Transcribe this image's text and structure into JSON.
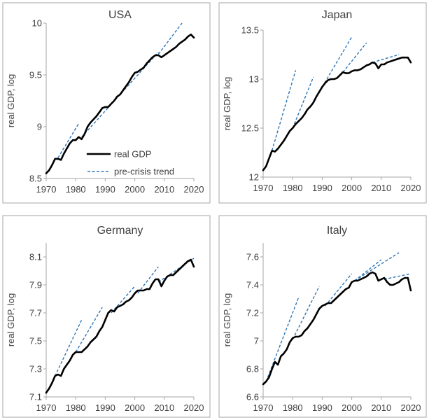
{
  "chart_data": [
    {
      "id": "usa",
      "type": "line",
      "title": "USA",
      "xlabel": "",
      "ylabel": "real GDP, log",
      "xlim": [
        1970,
        2020
      ],
      "ylim": [
        8.5,
        10
      ],
      "xticks": [
        1970,
        1980,
        1990,
        2000,
        2010,
        2020
      ],
      "xtick_labels": [
        "1970",
        "1980",
        "1990",
        "2000",
        "2010",
        "2020"
      ],
      "yticks": [
        8.5,
        9,
        9.5,
        10
      ],
      "ytick_labels": [
        "8.5",
        "9",
        "9.5",
        "10"
      ],
      "legend": {
        "position": "bottom-right",
        "entries": [
          "real GDP",
          "pre-crisis trend"
        ]
      },
      "series": [
        {
          "name": "real GDP",
          "style": "solid-black",
          "x": [
            1970,
            1971,
            1972,
            1973,
            1974,
            1975,
            1976,
            1977,
            1978,
            1979,
            1980,
            1981,
            1982,
            1983,
            1984,
            1985,
            1986,
            1987,
            1988,
            1989,
            1990,
            1991,
            1992,
            1993,
            1994,
            1995,
            1996,
            1997,
            1998,
            1999,
            2000,
            2001,
            2002,
            2003,
            2004,
            2005,
            2006,
            2007,
            2008,
            2009,
            2010,
            2011,
            2012,
            2013,
            2014,
            2015,
            2016,
            2017,
            2018,
            2019,
            2020
          ],
          "y": [
            8.55,
            8.58,
            8.63,
            8.69,
            8.69,
            8.68,
            8.74,
            8.79,
            8.84,
            8.87,
            8.87,
            8.9,
            8.88,
            8.93,
            9.0,
            9.04,
            9.07,
            9.1,
            9.14,
            9.18,
            9.19,
            9.19,
            9.22,
            9.25,
            9.29,
            9.31,
            9.35,
            9.39,
            9.43,
            9.48,
            9.52,
            9.53,
            9.55,
            9.57,
            9.61,
            9.64,
            9.67,
            9.69,
            9.69,
            9.67,
            9.69,
            9.71,
            9.73,
            9.75,
            9.77,
            9.8,
            9.82,
            9.84,
            9.87,
            9.89,
            9.86
          ]
        },
        {
          "name": "pre-crisis trend",
          "style": "dashed-blue",
          "segments": [
            {
              "x": [
                1974,
                1981
              ],
              "y": [
                8.7,
                9.03
              ]
            },
            {
              "x": [
                1982,
                2008
              ],
              "y": [
                8.9,
                9.72
              ]
            },
            {
              "x": [
                2008,
                2016
              ],
              "y": [
                9.7,
                10.0
              ]
            }
          ]
        }
      ]
    },
    {
      "id": "japan",
      "type": "line",
      "title": "Japan",
      "xlabel": "",
      "ylabel": "real GDP, log",
      "xlim": [
        1970,
        2020
      ],
      "ylim": [
        12,
        13.5
      ],
      "xticks": [
        1970,
        1980,
        1990,
        2000,
        2010,
        2020
      ],
      "xtick_labels": [
        "1970",
        "1980",
        "1990",
        "2000",
        "2010",
        "2020"
      ],
      "yticks": [
        12,
        12.5,
        13,
        13.5
      ],
      "ytick_labels": [
        "12",
        "12.5",
        "13",
        "13.5"
      ],
      "series": [
        {
          "name": "real GDP",
          "style": "solid-black",
          "x": [
            1970,
            1971,
            1972,
            1973,
            1974,
            1975,
            1976,
            1977,
            1978,
            1979,
            1980,
            1981,
            1982,
            1983,
            1984,
            1985,
            1986,
            1987,
            1988,
            1989,
            1990,
            1991,
            1992,
            1993,
            1994,
            1995,
            1996,
            1997,
            1998,
            1999,
            2000,
            2001,
            2002,
            2003,
            2004,
            2005,
            2006,
            2007,
            2008,
            2009,
            2010,
            2011,
            2012,
            2013,
            2014,
            2015,
            2016,
            2017,
            2018,
            2019,
            2020
          ],
          "y": [
            12.07,
            12.11,
            12.19,
            12.27,
            12.26,
            12.29,
            12.33,
            12.37,
            12.42,
            12.47,
            12.5,
            12.54,
            12.57,
            12.6,
            12.64,
            12.69,
            12.72,
            12.76,
            12.82,
            12.87,
            12.92,
            12.96,
            12.99,
            13.0,
            13.0,
            13.01,
            13.04,
            13.07,
            13.06,
            13.06,
            13.08,
            13.09,
            13.09,
            13.1,
            13.12,
            13.14,
            13.15,
            13.17,
            13.16,
            13.11,
            13.15,
            13.15,
            13.17,
            13.18,
            13.19,
            13.2,
            13.21,
            13.22,
            13.22,
            13.22,
            13.17
          ]
        },
        {
          "name": "pre-crisis trend",
          "style": "dashed-blue",
          "segments": [
            {
              "x": [
                1973,
                1981
              ],
              "y": [
                12.27,
                13.09
              ]
            },
            {
              "x": [
                1980,
                1987
              ],
              "y": [
                12.5,
                13.02
              ]
            },
            {
              "x": [
                1990,
                2000
              ],
              "y": [
                12.92,
                13.43
              ]
            },
            {
              "x": [
                1997,
                2005
              ],
              "y": [
                13.07,
                13.37
              ]
            },
            {
              "x": [
                2007,
                2016
              ],
              "y": [
                13.17,
                13.25
              ]
            }
          ]
        }
      ]
    },
    {
      "id": "germany",
      "type": "line",
      "title": "Germany",
      "xlabel": "",
      "ylabel": "real GDP, log",
      "xlim": [
        1970,
        2020
      ],
      "ylim": [
        7.1,
        8.2
      ],
      "xticks": [
        1970,
        1980,
        1990,
        2000,
        2010,
        2020
      ],
      "xtick_labels": [
        "1970",
        "1980",
        "1990",
        "2000",
        "2010",
        "2020"
      ],
      "yticks": [
        7.1,
        7.3,
        7.5,
        7.7,
        7.9,
        8.1
      ],
      "ytick_labels": [
        "7.1",
        "7.3",
        "7.5",
        "7.7",
        "7.9",
        "8.1"
      ],
      "series": [
        {
          "name": "real GDP",
          "style": "solid-black",
          "x": [
            1970,
            1971,
            1972,
            1973,
            1974,
            1975,
            1976,
            1977,
            1978,
            1979,
            1980,
            1981,
            1982,
            1983,
            1984,
            1985,
            1986,
            1987,
            1988,
            1989,
            1990,
            1991,
            1992,
            1993,
            1994,
            1995,
            1996,
            1997,
            1998,
            1999,
            2000,
            2001,
            2002,
            2003,
            2004,
            2005,
            2006,
            2007,
            2008,
            2009,
            2010,
            2011,
            2012,
            2013,
            2014,
            2015,
            2016,
            2017,
            2018,
            2019,
            2020
          ],
          "y": [
            7.13,
            7.16,
            7.2,
            7.25,
            7.26,
            7.25,
            7.3,
            7.33,
            7.36,
            7.4,
            7.42,
            7.42,
            7.42,
            7.44,
            7.46,
            7.49,
            7.51,
            7.53,
            7.57,
            7.6,
            7.65,
            7.7,
            7.72,
            7.71,
            7.74,
            7.75,
            7.76,
            7.78,
            7.79,
            7.81,
            7.84,
            7.86,
            7.86,
            7.86,
            7.87,
            7.87,
            7.91,
            7.94,
            7.94,
            7.89,
            7.93,
            7.96,
            7.97,
            7.97,
            7.99,
            8.01,
            8.03,
            8.05,
            8.07,
            8.08,
            8.03
          ]
        },
        {
          "name": "pre-crisis trend",
          "style": "dashed-blue",
          "segments": [
            {
              "x": [
                1971,
                1982
              ],
              "y": [
                7.16,
                7.65
              ]
            },
            {
              "x": [
                1980,
                1989
              ],
              "y": [
                7.42,
                7.74
              ]
            },
            {
              "x": [
                1992,
                2000
              ],
              "y": [
                7.7,
                7.89
              ]
            },
            {
              "x": [
                2001,
                2008
              ],
              "y": [
                7.84,
                8.03
              ]
            },
            {
              "x": [
                2008,
                2020
              ],
              "y": [
                7.92,
                8.09
              ]
            }
          ]
        }
      ]
    },
    {
      "id": "italy",
      "type": "line",
      "title": "Italy",
      "xlabel": "",
      "ylabel": "real GDP, log",
      "xlim": [
        1970,
        2020
      ],
      "ylim": [
        6.6,
        7.7
      ],
      "xticks": [
        1970,
        1980,
        1990,
        2000,
        2010,
        2020
      ],
      "xtick_labels": [
        "1970",
        "1980",
        "1990",
        "2000",
        "2010",
        "2020"
      ],
      "yticks": [
        6.6,
        6.8,
        7,
        7.2,
        7.4,
        7.6
      ],
      "ytick_labels": [
        "6.6",
        "6.8",
        "7",
        "7.2",
        "7.4",
        "7.6"
      ],
      "series": [
        {
          "name": "real GDP",
          "style": "solid-black",
          "x": [
            1970,
            1971,
            1972,
            1973,
            1974,
            1975,
            1976,
            1977,
            1978,
            1979,
            1980,
            1981,
            1982,
            1983,
            1984,
            1985,
            1986,
            1987,
            1988,
            1989,
            1990,
            1991,
            1992,
            1993,
            1994,
            1995,
            1996,
            1997,
            1998,
            1999,
            2000,
            2001,
            2002,
            2003,
            2004,
            2005,
            2006,
            2007,
            2008,
            2009,
            2010,
            2011,
            2012,
            2013,
            2014,
            2015,
            2016,
            2017,
            2018,
            2019,
            2020
          ],
          "y": [
            6.69,
            6.71,
            6.74,
            6.8,
            6.85,
            6.83,
            6.89,
            6.91,
            6.94,
            6.99,
            7.02,
            7.03,
            7.03,
            7.04,
            7.07,
            7.09,
            7.12,
            7.15,
            7.19,
            7.23,
            7.25,
            7.26,
            7.27,
            7.27,
            7.29,
            7.31,
            7.33,
            7.35,
            7.37,
            7.38,
            7.42,
            7.43,
            7.43,
            7.44,
            7.45,
            7.46,
            7.48,
            7.49,
            7.48,
            7.43,
            7.44,
            7.45,
            7.42,
            7.4,
            7.4,
            7.41,
            7.42,
            7.44,
            7.45,
            7.45,
            7.36
          ]
        },
        {
          "name": "pre-crisis trend",
          "style": "dashed-blue",
          "segments": [
            {
              "x": [
                1971,
                1982
              ],
              "y": [
                6.71,
                7.31
              ]
            },
            {
              "x": [
                1980,
                1989
              ],
              "y": [
                7.01,
                7.39
              ]
            },
            {
              "x": [
                1991,
                2000
              ],
              "y": [
                7.25,
                7.48
              ]
            },
            {
              "x": [
                2001,
                2016
              ],
              "y": [
                7.43,
                7.63
              ]
            },
            {
              "x": [
                2001,
                2010
              ],
              "y": [
                7.43,
                7.58
              ]
            },
            {
              "x": [
                2011,
                2020
              ],
              "y": [
                7.44,
                7.48
              ]
            }
          ]
        }
      ]
    }
  ]
}
